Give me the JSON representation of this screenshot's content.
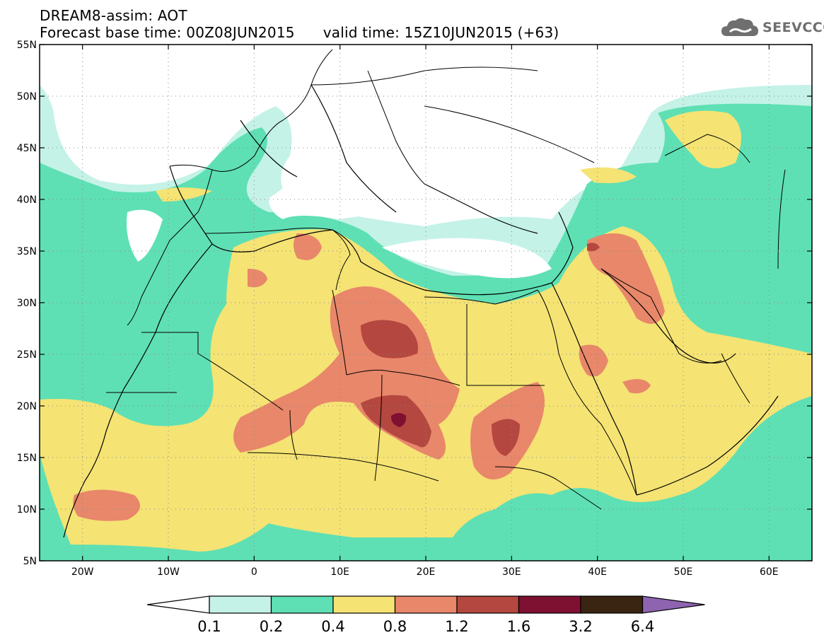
{
  "header": {
    "title_line1": "DREAM8-assim: AOT",
    "base_time": "Forecast base time: 00Z08JUN2015",
    "valid_time": "valid time: 15Z10JUN2015 (+63)"
  },
  "logo": {
    "text": "SEEVCCC",
    "icon": "cloud-icon",
    "color": "#6f6f6f"
  },
  "map": {
    "lat_labels": [
      "55N",
      "50N",
      "45N",
      "40N",
      "35N",
      "30N",
      "25N",
      "20N",
      "15N",
      "10N",
      "5N"
    ],
    "lon_labels": [
      "20W",
      "10W",
      "0",
      "10E",
      "20E",
      "30E",
      "40E",
      "50E",
      "60E"
    ],
    "lat_values": [
      55,
      50,
      45,
      40,
      35,
      30,
      25,
      20,
      15,
      10,
      5
    ],
    "lon_values": [
      -20,
      -10,
      0,
      10,
      20,
      30,
      40,
      50,
      60
    ],
    "lon_range": [
      -25,
      65
    ],
    "lat_range": [
      5,
      55
    ],
    "gridlines": true
  },
  "colorbar": {
    "labels": [
      "0.1",
      "0.2",
      "0.4",
      "0.8",
      "1.2",
      "1.6",
      "3.2",
      "6.4"
    ],
    "colors": [
      "#c4f2e7",
      "#5ee0b4",
      "#f5e374",
      "#e8876a",
      "#b4473f",
      "#7e1032",
      "#3a2412",
      "#8e63b0"
    ],
    "under_color": "#ffffff"
  }
}
